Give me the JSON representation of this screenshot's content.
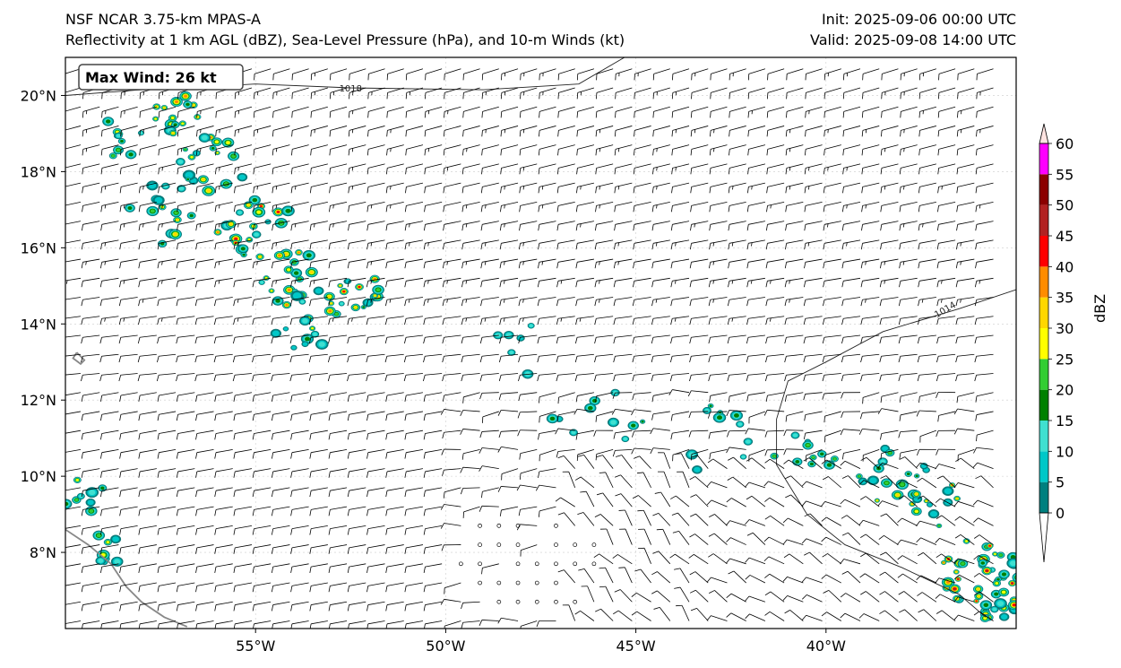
{
  "titles": {
    "left_line1": "NSF NCAR 3.75-km MPAS-A",
    "left_line2": "Reflectivity at 1 km AGL (dBZ), Sea-Level Pressure (hPa), and 10-m Winds (kt)",
    "right_line1": "Init: 2025-09-06 00:00 UTC",
    "right_line2": "Valid: 2025-09-08 14:00 UTC"
  },
  "max_wind_label": "Max Wind: 26 kt",
  "map": {
    "lon_range": [
      -60,
      -35
    ],
    "lat_range": [
      6,
      21
    ],
    "lon_ticks": [
      {
        "value": -55,
        "label": "55°W"
      },
      {
        "value": -50,
        "label": "50°W"
      },
      {
        "value": -45,
        "label": "45°W"
      },
      {
        "value": -40,
        "label": "40°W"
      }
    ],
    "lat_ticks": [
      {
        "value": 8,
        "label": "8°N"
      },
      {
        "value": 10,
        "label": "10°N"
      },
      {
        "value": 12,
        "label": "12°N"
      },
      {
        "value": 14,
        "label": "14°N"
      },
      {
        "value": 16,
        "label": "16°N"
      },
      {
        "value": 18,
        "label": "18°N"
      },
      {
        "value": 20,
        "label": "20°N"
      }
    ],
    "isobars": [
      {
        "label": "1018",
        "points": [
          [
            -60,
            20.0
          ],
          [
            -58,
            20.15
          ],
          [
            -55,
            20.3
          ],
          [
            -52.5,
            20.2
          ],
          [
            -49,
            20.15
          ],
          [
            -46.5,
            20.3
          ],
          [
            -45.3,
            21.0
          ]
        ]
      },
      {
        "label": "1014",
        "points": [
          [
            -35,
            14.9
          ],
          [
            -36.5,
            14.4
          ],
          [
            -38.5,
            13.8
          ],
          [
            -40,
            13.0
          ],
          [
            -41,
            12.5
          ],
          [
            -41.3,
            11.5
          ],
          [
            -41.3,
            10.3
          ],
          [
            -40.5,
            9.0
          ],
          [
            -39.5,
            8.2
          ],
          [
            -38,
            7.6
          ],
          [
            -36.5,
            6.9
          ],
          [
            -35.8,
            6.3
          ]
        ]
      }
    ],
    "coastlines": [
      [
        [
          -60,
          8.6
        ],
        [
          -59.4,
          8.2
        ],
        [
          -58.8,
          7.7
        ],
        [
          -58.4,
          7.1
        ],
        [
          -58.0,
          6.7
        ],
        [
          -57.4,
          6.3
        ],
        [
          -56.8,
          6.05
        ]
      ],
      [
        [
          -59.7,
          13.25
        ],
        [
          -59.5,
          13.05
        ],
        [
          -59.6,
          12.95
        ],
        [
          -59.8,
          13.1
        ],
        [
          -59.7,
          13.25
        ]
      ]
    ],
    "reflectivity_clusters": [
      {
        "lon": -57.0,
        "lat": 19.5,
        "r": 0.7,
        "n": 14,
        "max": 40
      },
      {
        "lon": -56.0,
        "lat": 18.2,
        "r": 1.0,
        "n": 18,
        "max": 40
      },
      {
        "lon": -55.0,
        "lat": 16.5,
        "r": 1.1,
        "n": 22,
        "max": 45
      },
      {
        "lon": -54.0,
        "lat": 15.2,
        "r": 0.9,
        "n": 20,
        "max": 45
      },
      {
        "lon": -52.5,
        "lat": 14.8,
        "r": 0.8,
        "n": 18,
        "max": 45
      },
      {
        "lon": -53.8,
        "lat": 13.7,
        "r": 0.7,
        "n": 10,
        "max": 30
      },
      {
        "lon": -57.5,
        "lat": 17.0,
        "r": 1.2,
        "n": 14,
        "max": 35
      },
      {
        "lon": -58.5,
        "lat": 19.0,
        "r": 0.8,
        "n": 10,
        "max": 30
      },
      {
        "lon": -59.5,
        "lat": 9.5,
        "r": 0.6,
        "n": 8,
        "max": 30
      },
      {
        "lon": -59.0,
        "lat": 8.0,
        "r": 0.6,
        "n": 8,
        "max": 30
      },
      {
        "lon": -46.0,
        "lat": 11.5,
        "r": 1.2,
        "n": 10,
        "max": 20
      },
      {
        "lon": -43.0,
        "lat": 11.0,
        "r": 1.2,
        "n": 10,
        "max": 20
      },
      {
        "lon": -40.5,
        "lat": 10.7,
        "r": 0.9,
        "n": 10,
        "max": 25
      },
      {
        "lon": -38.3,
        "lat": 10.0,
        "r": 1.0,
        "n": 16,
        "max": 35
      },
      {
        "lon": -37.0,
        "lat": 9.3,
        "r": 0.8,
        "n": 12,
        "max": 40
      },
      {
        "lon": -36.0,
        "lat": 7.5,
        "r": 1.1,
        "n": 34,
        "max": 50
      },
      {
        "lon": -35.5,
        "lat": 6.6,
        "r": 0.6,
        "n": 14,
        "max": 45
      },
      {
        "lon": -48.0,
        "lat": 13.2,
        "r": 1.0,
        "n": 6,
        "max": 15
      }
    ]
  },
  "colorbar": {
    "label": "dBZ",
    "levels": [
      0,
      5,
      10,
      15,
      20,
      25,
      30,
      35,
      40,
      45,
      50,
      55,
      60
    ],
    "tick_labels": [
      "0",
      "5",
      "10",
      "15",
      "20",
      "25",
      "30",
      "35",
      "40",
      "45",
      "50",
      "55",
      "60"
    ],
    "colors": [
      "#00807f",
      "#00c8c8",
      "#40e0d0",
      "#008000",
      "#32cd32",
      "#ffff00",
      "#ffd700",
      "#ff8c00",
      "#ff0000",
      "#b22222",
      "#8b0000",
      "#ff00ff",
      "#ffe4e1"
    ],
    "extend": "both"
  }
}
